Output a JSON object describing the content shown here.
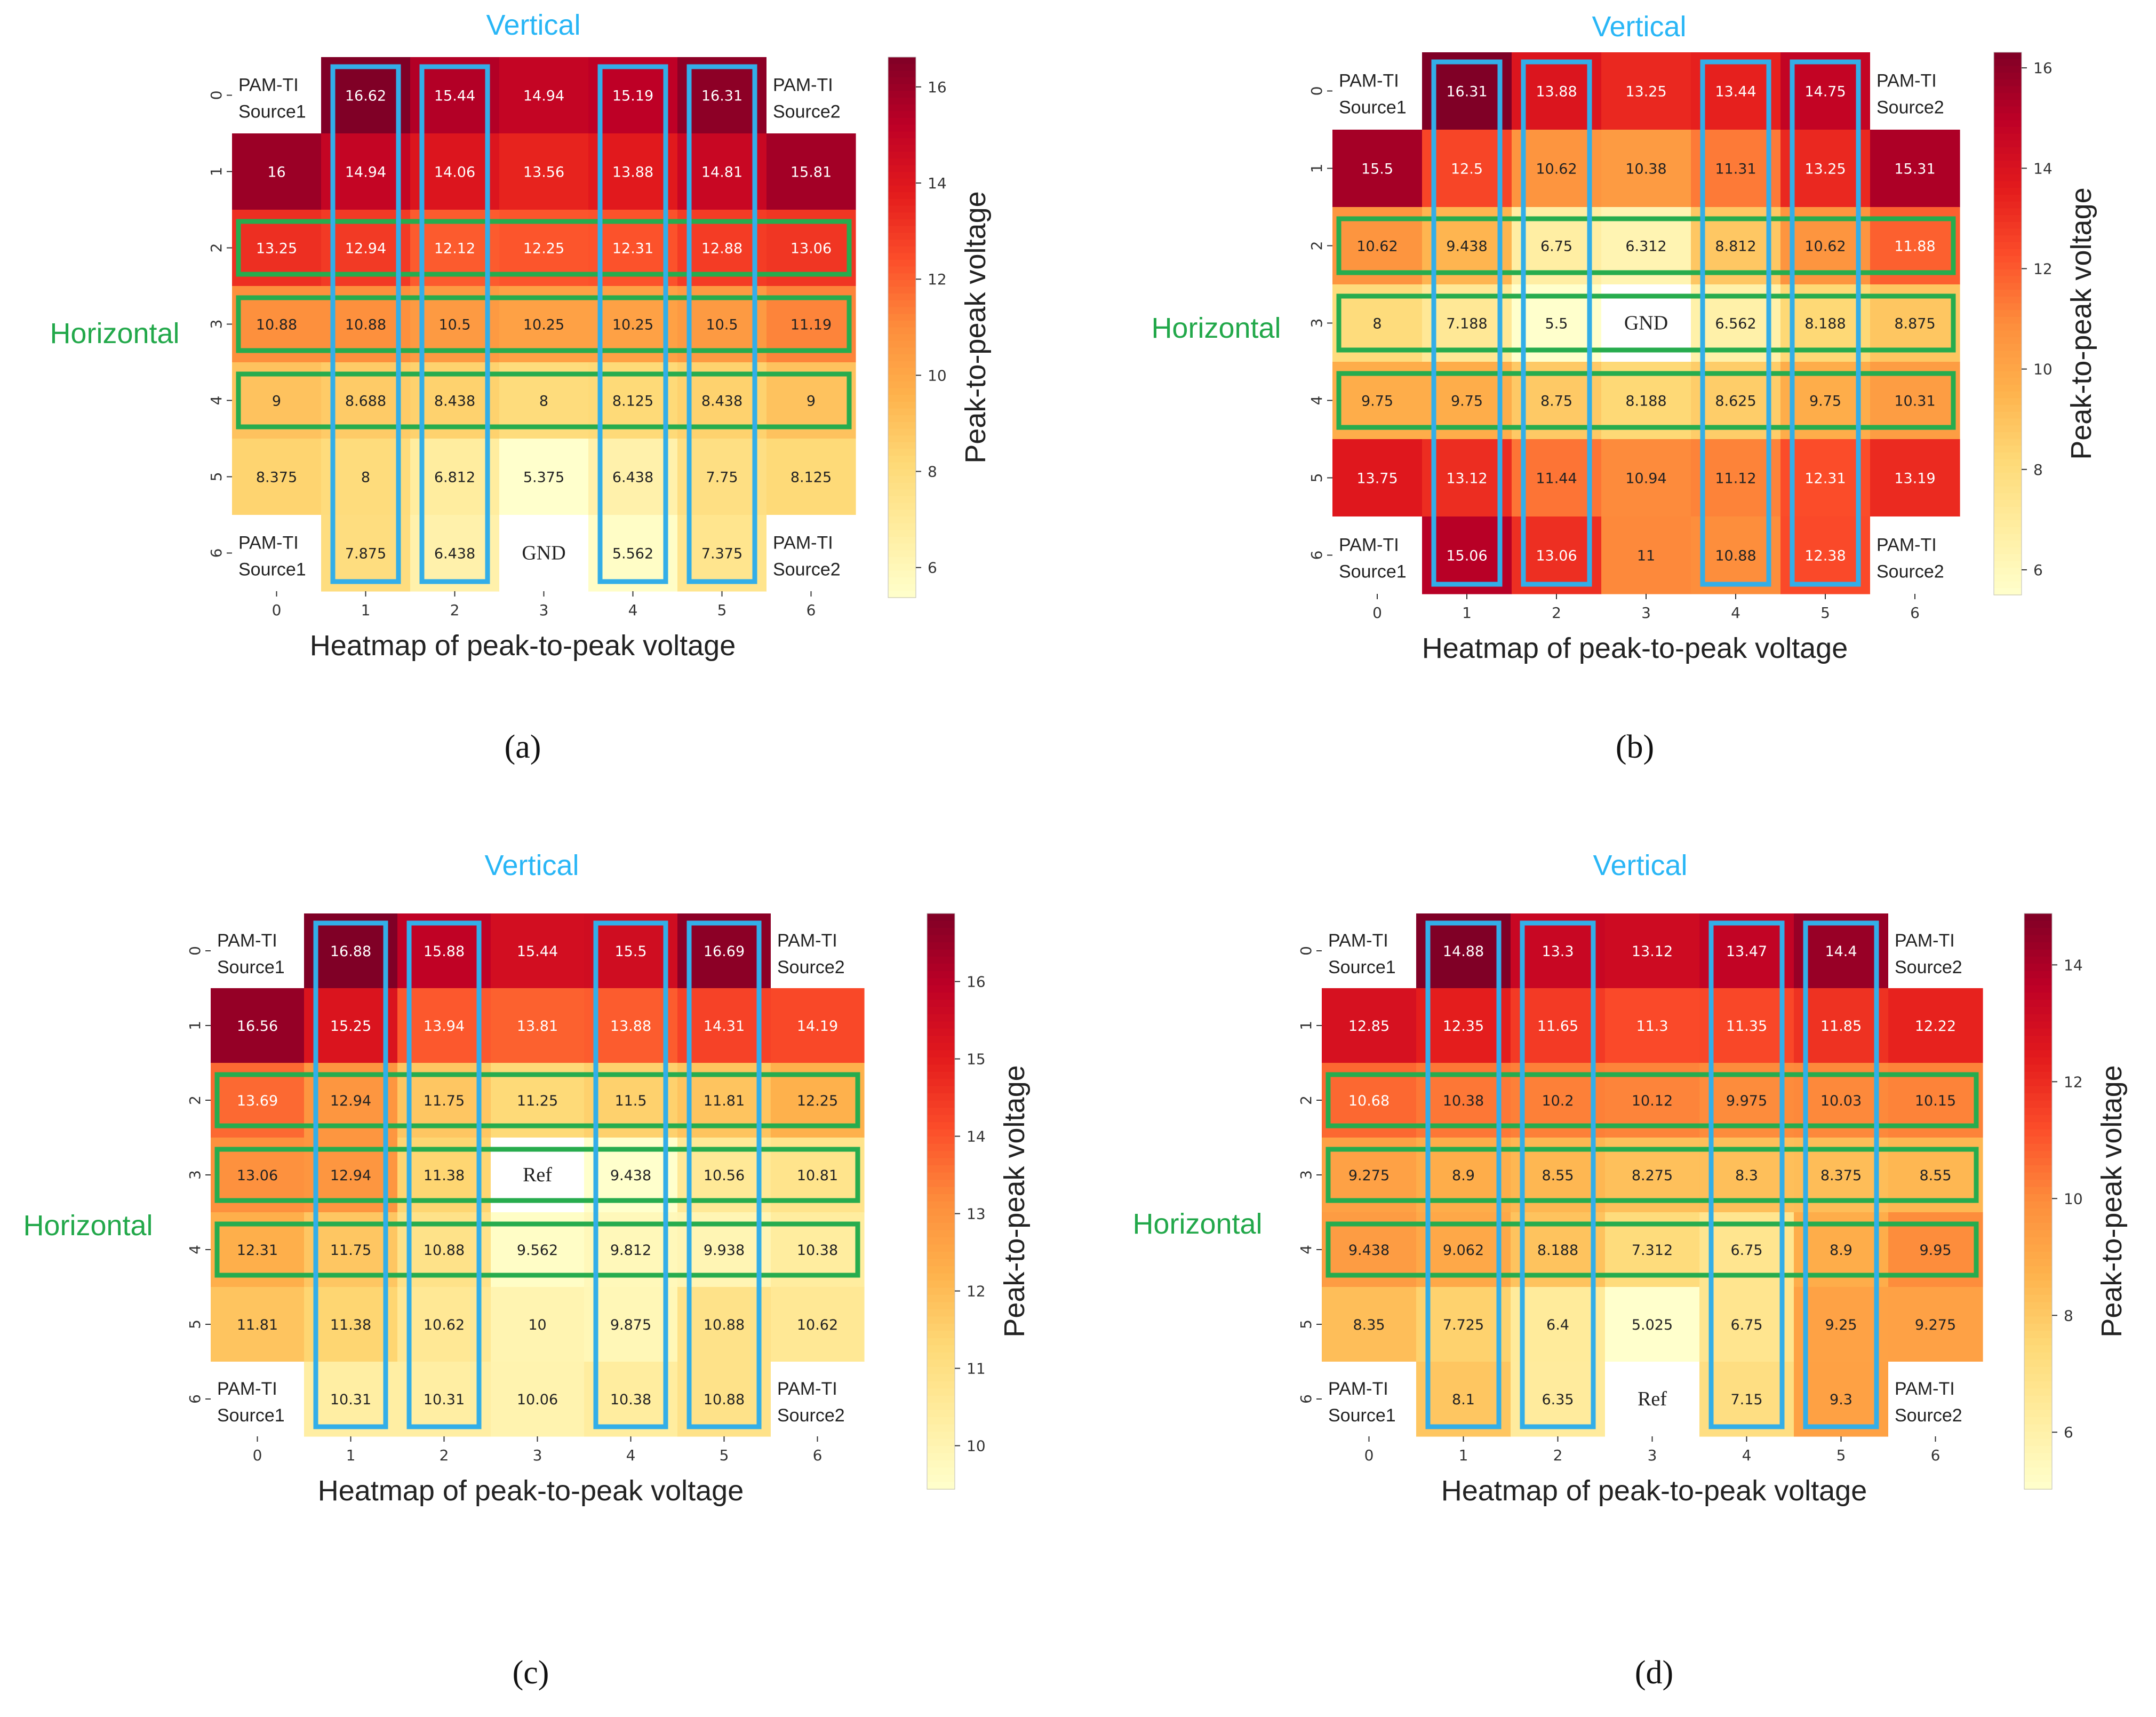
{
  "figure": {
    "colors": {
      "vertical_label": "#29b6f6",
      "horizontal_label": "#22a84a",
      "vertical_box": "#33aee8",
      "horizontal_box": "#27ac4e",
      "na_cell": "#ffffff",
      "text_dark": "#222222",
      "text_light": "#ffffff"
    },
    "colormap": [
      "#ffffcc",
      "#ffeda0",
      "#fed976",
      "#feb24c",
      "#fd8d3c",
      "#fc4e2a",
      "#e31a1c",
      "#bd0026",
      "#800026"
    ]
  },
  "chart_data": [
    {
      "panel": "(a)",
      "type": "heatmap",
      "title": "",
      "xlabel": "Heatmap of peak-to-peak voltage",
      "colorbar_label": "Peak-to-peak voltage",
      "vertical_label": "Vertical",
      "horizontal_label": "Horizontal",
      "x_ticks": [
        "0",
        "1",
        "2",
        "3",
        "4",
        "5",
        "6"
      ],
      "y_ticks": [
        "0",
        "1",
        "2",
        "3",
        "4",
        "5",
        "6"
      ],
      "vmin": 5.375,
      "vmax": 16.62,
      "colorbar_ticks": [
        6,
        8,
        10,
        12,
        14,
        16
      ],
      "values": [
        [
          null,
          16.62,
          15.44,
          14.94,
          15.19,
          16.31,
          null
        ],
        [
          16,
          14.94,
          14.06,
          13.56,
          13.88,
          14.81,
          15.81
        ],
        [
          13.25,
          12.94,
          12.12,
          12.25,
          12.31,
          12.88,
          13.06
        ],
        [
          10.88,
          10.88,
          10.5,
          10.25,
          10.25,
          10.5,
          11.19
        ],
        [
          9,
          8.688,
          8.438,
          8,
          8.125,
          8.438,
          9
        ],
        [
          8.375,
          8,
          6.812,
          5.375,
          6.438,
          7.75,
          8.125
        ],
        [
          null,
          7.875,
          6.438,
          null,
          5.562,
          7.375,
          null
        ]
      ],
      "labels": [
        [
          "",
          "16.62",
          "15.44",
          "14.94",
          "15.19",
          "16.31",
          ""
        ],
        [
          "16",
          "14.94",
          "14.06",
          "13.56",
          "13.88",
          "14.81",
          "15.81"
        ],
        [
          "13.25",
          "12.94",
          "12.12",
          "12.25",
          "12.31",
          "12.88",
          "13.06"
        ],
        [
          "10.88",
          "10.88",
          "10.5",
          "10.25",
          "10.25",
          "10.5",
          "11.19"
        ],
        [
          "9",
          "8.688",
          "8.438",
          "8",
          "8.125",
          "8.438",
          "9"
        ],
        [
          "8.375",
          "8",
          "6.812",
          "5.375",
          "6.438",
          "7.75",
          "8.125"
        ],
        [
          "",
          "7.875",
          "6.438",
          "",
          "5.562",
          "7.375",
          ""
        ]
      ],
      "corner_labels": {
        "top_left": [
          "PAM-TI",
          "Source1"
        ],
        "top_right": [
          "PAM-TI",
          "Source2"
        ],
        "bottom_left": [
          "PAM-TI",
          "Source1"
        ],
        "bottom_right": [
          "PAM-TI",
          "Source2"
        ]
      },
      "special_cells": [
        {
          "row": 6,
          "col": 3,
          "text": "GND"
        }
      ],
      "vertical_boxes": [
        1,
        2,
        4,
        5
      ],
      "horizontal_boxes": [
        2,
        3,
        4
      ]
    },
    {
      "panel": "(b)",
      "type": "heatmap",
      "title": "",
      "xlabel": "Heatmap of peak-to-peak voltage",
      "colorbar_label": "Peak-to-peak voltage",
      "vertical_label": "Vertical",
      "horizontal_label": "Horizontal",
      "x_ticks": [
        "0",
        "1",
        "2",
        "3",
        "4",
        "5",
        "6"
      ],
      "y_ticks": [
        "0",
        "1",
        "2",
        "3",
        "4",
        "5",
        "6"
      ],
      "vmin": 5.5,
      "vmax": 16.31,
      "colorbar_ticks": [
        6,
        8,
        10,
        12,
        14,
        16
      ],
      "values": [
        [
          null,
          16.31,
          13.88,
          13.25,
          13.44,
          14.75,
          null
        ],
        [
          15.5,
          12.5,
          10.62,
          10.38,
          11.31,
          13.25,
          15.31
        ],
        [
          10.62,
          9.438,
          6.75,
          6.312,
          8.812,
          10.62,
          11.88
        ],
        [
          8,
          7.188,
          5.5,
          null,
          6.562,
          8.188,
          8.875
        ],
        [
          9.75,
          9.75,
          8.75,
          8.188,
          8.625,
          9.75,
          10.31
        ],
        [
          13.75,
          13.12,
          11.44,
          10.94,
          11.12,
          12.31,
          13.19
        ],
        [
          null,
          15.06,
          13.06,
          11,
          10.88,
          12.38,
          null
        ]
      ],
      "labels": [
        [
          "",
          "16.31",
          "13.88",
          "13.25",
          "13.44",
          "14.75",
          ""
        ],
        [
          "15.5",
          "12.5",
          "10.62",
          "10.38",
          "11.31",
          "13.25",
          "15.31"
        ],
        [
          "10.62",
          "9.438",
          "6.75",
          "6.312",
          "8.812",
          "10.62",
          "11.88"
        ],
        [
          "8",
          "7.188",
          "5.5",
          "",
          "6.562",
          "8.188",
          "8.875"
        ],
        [
          "9.75",
          "9.75",
          "8.75",
          "8.188",
          "8.625",
          "9.75",
          "10.31"
        ],
        [
          "13.75",
          "13.12",
          "11.44",
          "10.94",
          "11.12",
          "12.31",
          "13.19"
        ],
        [
          "",
          "15.06",
          "13.06",
          "11",
          "10.88",
          "12.38",
          ""
        ]
      ],
      "corner_labels": {
        "top_left": [
          "PAM-TI",
          "Source1"
        ],
        "top_right": [
          "PAM-TI",
          "Source2"
        ],
        "bottom_left": [
          "PAM-TI",
          "Source1"
        ],
        "bottom_right": [
          "PAM-TI",
          "Source2"
        ]
      },
      "special_cells": [
        {
          "row": 3,
          "col": 3,
          "text": "GND"
        }
      ],
      "vertical_boxes": [
        1,
        2,
        4,
        5
      ],
      "horizontal_boxes": [
        2,
        3,
        4
      ]
    },
    {
      "panel": "(c)",
      "type": "heatmap",
      "title": "",
      "xlabel": "Heatmap of peak-to-peak voltage",
      "colorbar_label": "Peak-to-peak voltage",
      "vertical_label": "Vertical",
      "horizontal_label": "Horizontal",
      "x_ticks": [
        "0",
        "1",
        "2",
        "3",
        "4",
        "5",
        "6"
      ],
      "y_ticks": [
        "0",
        "1",
        "2",
        "3",
        "4",
        "5",
        "6"
      ],
      "vmin": 9.438,
      "vmax": 16.88,
      "colorbar_ticks": [
        10,
        11,
        12,
        13,
        14,
        15,
        16
      ],
      "values": [
        [
          null,
          16.88,
          15.88,
          15.44,
          15.5,
          16.69,
          null
        ],
        [
          16.56,
          15.25,
          13.94,
          13.81,
          13.88,
          14.31,
          14.19
        ],
        [
          13.69,
          12.94,
          11.75,
          11.25,
          11.5,
          11.81,
          12.25
        ],
        [
          13.06,
          12.94,
          11.38,
          null,
          9.438,
          10.56,
          10.81
        ],
        [
          12.31,
          11.75,
          10.88,
          9.562,
          9.812,
          9.938,
          10.38
        ],
        [
          11.81,
          11.38,
          10.62,
          10,
          9.875,
          10.88,
          10.62
        ],
        [
          null,
          10.31,
          10.31,
          10.06,
          10.38,
          10.88,
          null
        ]
      ],
      "labels": [
        [
          "",
          "16.88",
          "15.88",
          "15.44",
          "15.5",
          "16.69",
          ""
        ],
        [
          "16.56",
          "15.25",
          "13.94",
          "13.81",
          "13.88",
          "14.31",
          "14.19"
        ],
        [
          "13.69",
          "12.94",
          "11.75",
          "11.25",
          "11.5",
          "11.81",
          "12.25"
        ],
        [
          "13.06",
          "12.94",
          "11.38",
          "",
          "9.438",
          "10.56",
          "10.81"
        ],
        [
          "12.31",
          "11.75",
          "10.88",
          "9.562",
          "9.812",
          "9.938",
          "10.38"
        ],
        [
          "11.81",
          "11.38",
          "10.62",
          "10",
          "9.875",
          "10.88",
          "10.62"
        ],
        [
          "",
          "10.31",
          "10.31",
          "10.06",
          "10.38",
          "10.88",
          ""
        ]
      ],
      "corner_labels": {
        "top_left": [
          "PAM-TI",
          "Source1"
        ],
        "top_right": [
          "PAM-TI",
          "Source2"
        ],
        "bottom_left": [
          "PAM-TI",
          "Source1"
        ],
        "bottom_right": [
          "PAM-TI",
          "Source2"
        ]
      },
      "special_cells": [
        {
          "row": 3,
          "col": 3,
          "text": "Ref"
        }
      ],
      "vertical_boxes": [
        1,
        2,
        4,
        5
      ],
      "horizontal_boxes": [
        2,
        3,
        4
      ]
    },
    {
      "panel": "(d)",
      "type": "heatmap",
      "title": "",
      "xlabel": "Heatmap of peak-to-peak voltage",
      "colorbar_label": "Peak-to-peak voltage",
      "vertical_label": "Vertical",
      "horizontal_label": "Horizontal",
      "x_ticks": [
        "0",
        "1",
        "2",
        "3",
        "4",
        "5",
        "6"
      ],
      "y_ticks": [
        "0",
        "1",
        "2",
        "3",
        "4",
        "5",
        "6"
      ],
      "vmin": 5.025,
      "vmax": 14.88,
      "colorbar_ticks": [
        6,
        8,
        10,
        12,
        14
      ],
      "values": [
        [
          null,
          14.88,
          13.3,
          13.12,
          13.47,
          14.4,
          null
        ],
        [
          12.85,
          12.35,
          11.65,
          11.3,
          11.35,
          11.85,
          12.22
        ],
        [
          10.68,
          10.38,
          10.2,
          10.12,
          9.975,
          10.03,
          10.15
        ],
        [
          9.275,
          8.9,
          8.55,
          8.275,
          8.3,
          8.375,
          8.55
        ],
        [
          9.438,
          9.062,
          8.188,
          7.312,
          6.75,
          8.9,
          9.95
        ],
        [
          8.35,
          7.725,
          6.4,
          5.025,
          6.75,
          9.25,
          9.275
        ],
        [
          null,
          8.1,
          6.35,
          null,
          7.15,
          9.3,
          null
        ]
      ],
      "labels": [
        [
          "",
          "14.88",
          "13.3",
          "13.12",
          "13.47",
          "14.4",
          ""
        ],
        [
          "12.85",
          "12.35",
          "11.65",
          "11.3",
          "11.35",
          "11.85",
          "12.22"
        ],
        [
          "10.68",
          "10.38",
          "10.2",
          "10.12",
          "9.975",
          "10.03",
          "10.15"
        ],
        [
          "9.275",
          "8.9",
          "8.55",
          "8.275",
          "8.3",
          "8.375",
          "8.55"
        ],
        [
          "9.438",
          "9.062",
          "8.188",
          "7.312",
          "6.75",
          "8.9",
          "9.95"
        ],
        [
          "8.35",
          "7.725",
          "6.4",
          "5.025",
          "6.75",
          "9.25",
          "9.275"
        ],
        [
          "",
          "8.1",
          "6.35",
          "",
          "7.15",
          "9.3",
          ""
        ]
      ],
      "corner_labels": {
        "top_left": [
          "PAM-TI",
          "Source1"
        ],
        "top_right": [
          "PAM-TI",
          "Source2"
        ],
        "bottom_left": [
          "PAM-TI",
          "Source1"
        ],
        "bottom_right": [
          "PAM-TI",
          "Source2"
        ]
      },
      "special_cells": [
        {
          "row": 6,
          "col": 3,
          "text": "Ref"
        }
      ],
      "vertical_boxes": [
        1,
        2,
        4,
        5
      ],
      "horizontal_boxes": [
        2,
        3,
        4
      ]
    }
  ]
}
